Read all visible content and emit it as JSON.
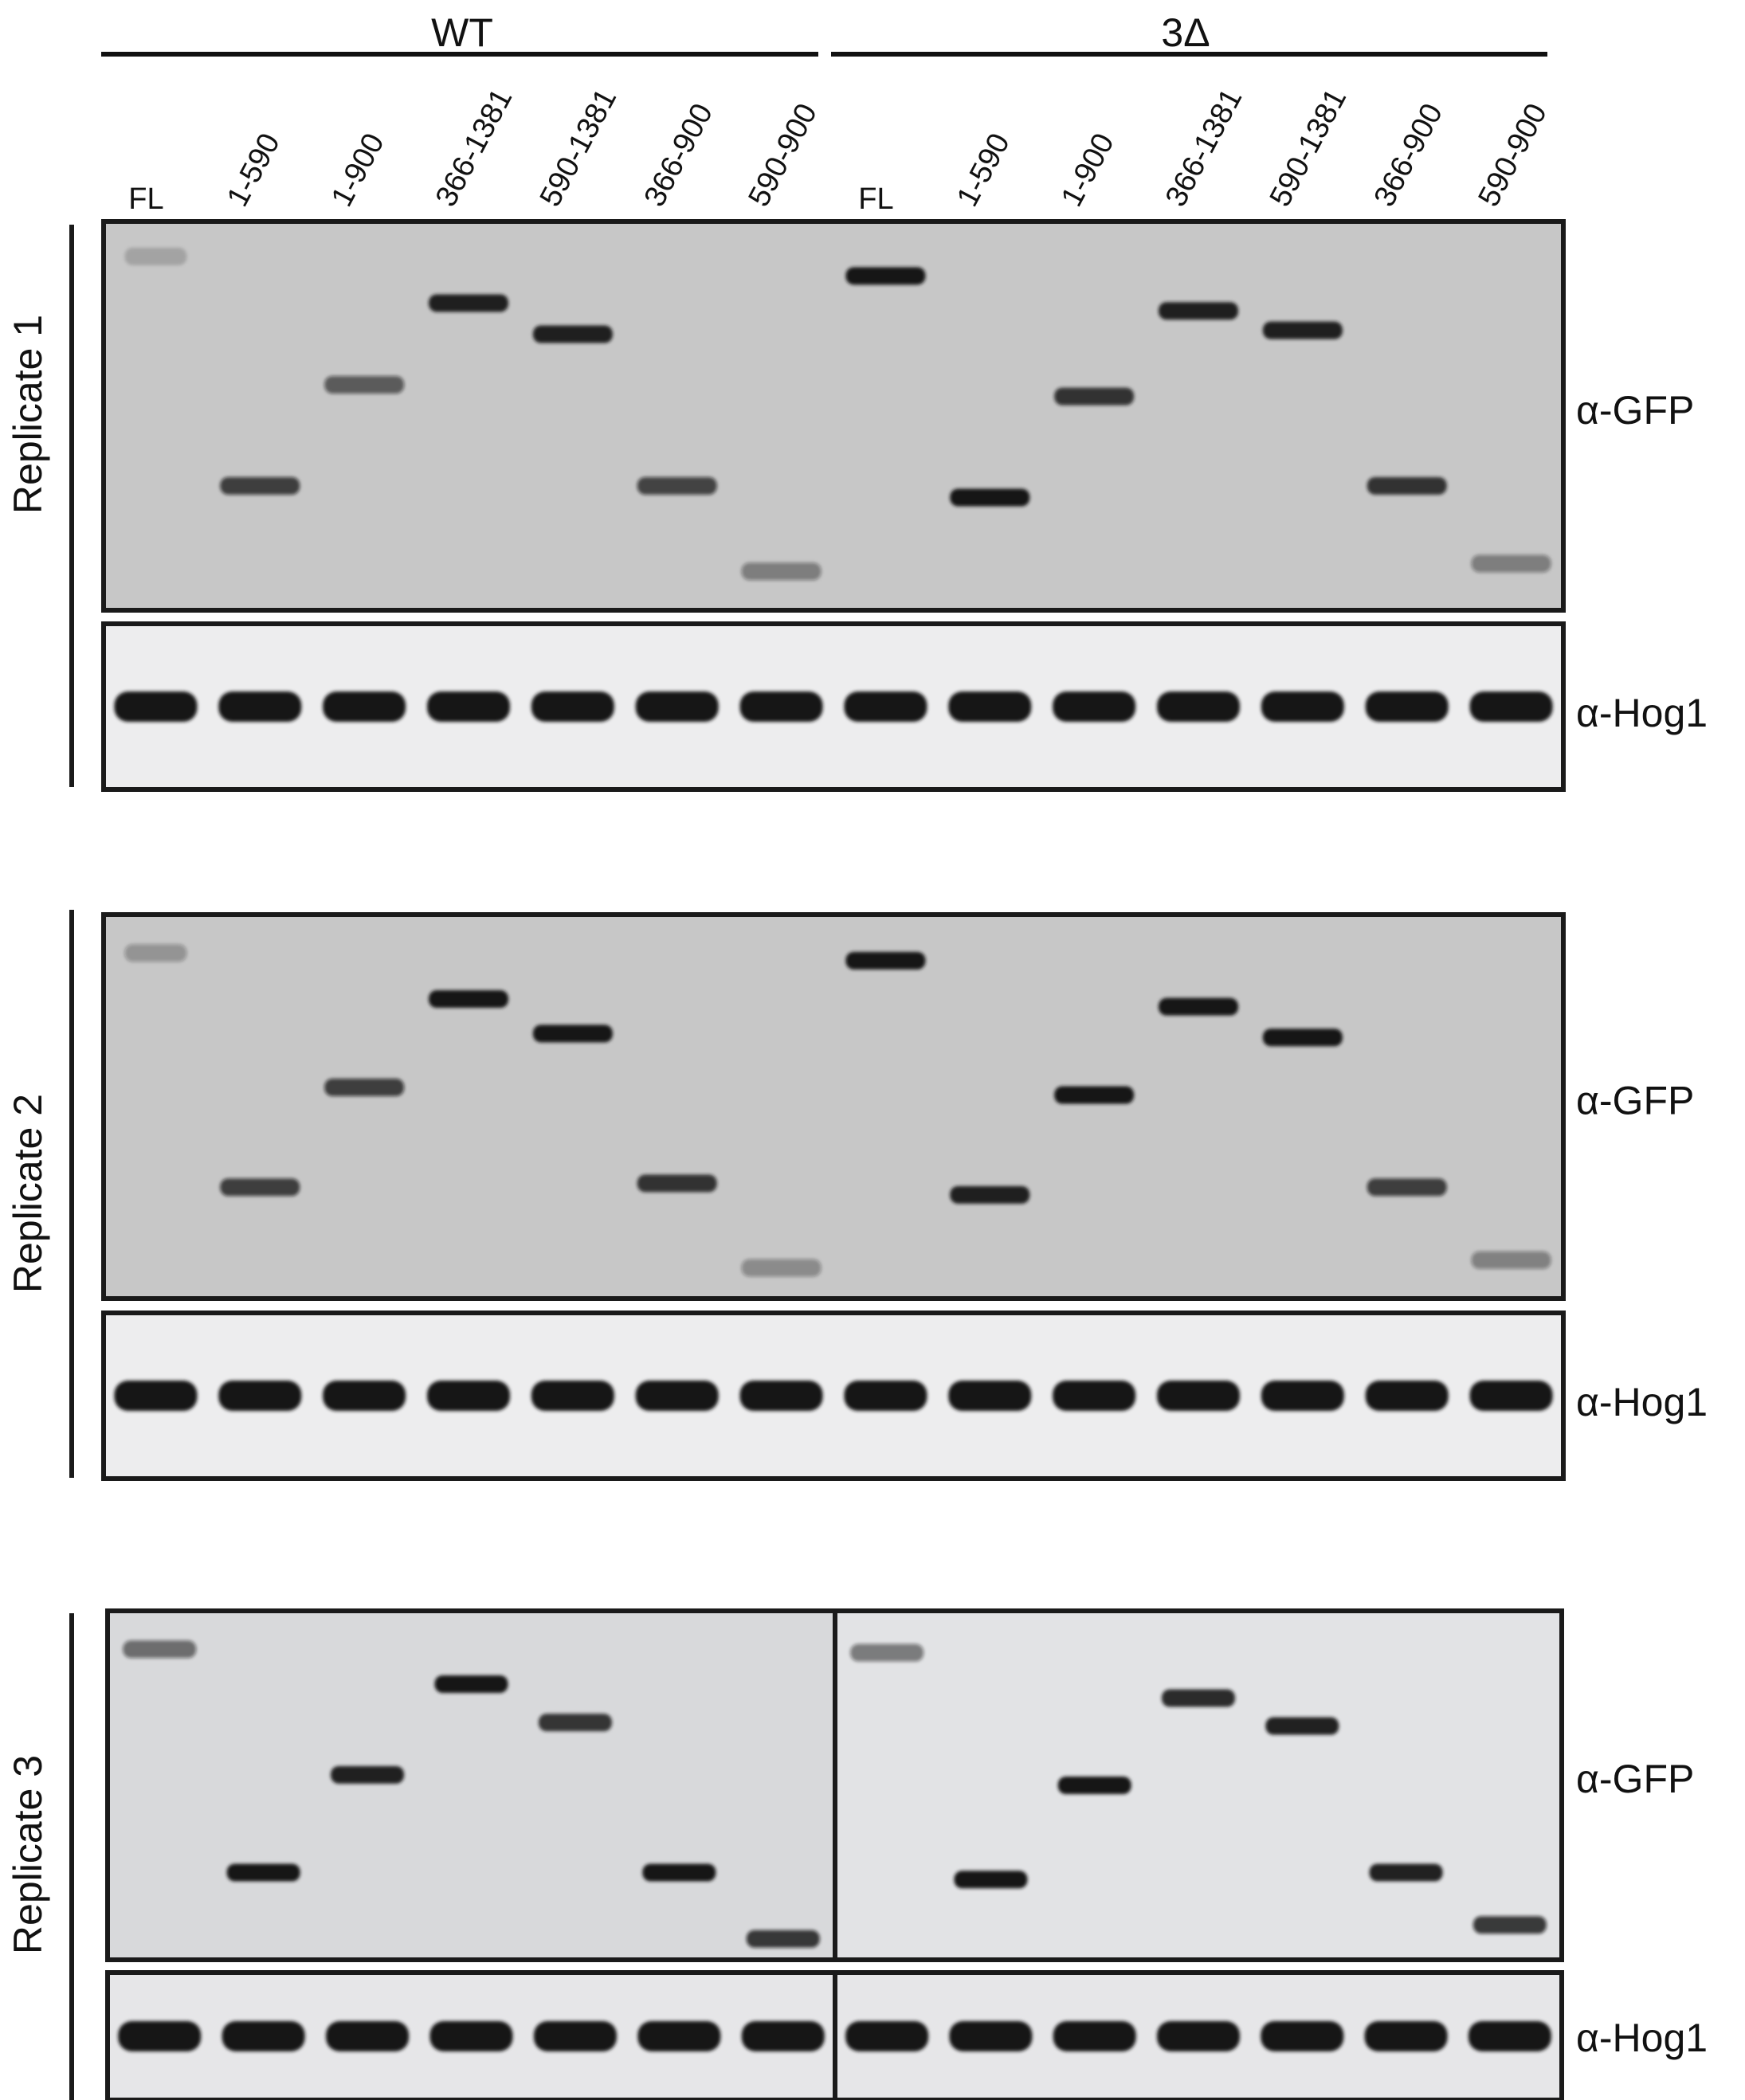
{
  "groups": [
    {
      "label": "WT"
    },
    {
      "label": "3Δ"
    }
  ],
  "lanes": [
    "FL",
    "1-590",
    "1-900",
    "366-1381",
    "590-1381",
    "366-900",
    "590-900"
  ],
  "antibodies": {
    "gfp": "α-GFP",
    "hog1": "α-Hog1"
  },
  "replicates": [
    {
      "label": "Replicate 1",
      "gfp_bands": {
        "wt": [
          {
            "lane": 1,
            "pos": 0.09,
            "int": 0.18
          },
          {
            "lane": 2,
            "pos": 0.68,
            "int": 0.75
          },
          {
            "lane": 3,
            "pos": 0.42,
            "int": 0.6
          },
          {
            "lane": 4,
            "pos": 0.21,
            "int": 0.95
          },
          {
            "lane": 5,
            "pos": 0.29,
            "int": 0.95
          },
          {
            "lane": 6,
            "pos": 0.68,
            "int": 0.72
          },
          {
            "lane": 7,
            "pos": 0.9,
            "int": 0.42
          }
        ],
        "mut": [
          {
            "lane": 1,
            "pos": 0.14,
            "int": 1.0
          },
          {
            "lane": 2,
            "pos": 0.71,
            "int": 1.0
          },
          {
            "lane": 3,
            "pos": 0.45,
            "int": 0.85
          },
          {
            "lane": 4,
            "pos": 0.23,
            "int": 0.95
          },
          {
            "lane": 5,
            "pos": 0.28,
            "int": 0.95
          },
          {
            "lane": 6,
            "pos": 0.68,
            "int": 0.85
          },
          {
            "lane": 7,
            "pos": 0.88,
            "int": 0.42
          }
        ]
      }
    },
    {
      "label": "Replicate 2",
      "gfp_bands": {
        "wt": [
          {
            "lane": 1,
            "pos": 0.1,
            "int": 0.3
          },
          {
            "lane": 2,
            "pos": 0.71,
            "int": 0.75
          },
          {
            "lane": 3,
            "pos": 0.45,
            "int": 0.75
          },
          {
            "lane": 4,
            "pos": 0.22,
            "int": 1.0
          },
          {
            "lane": 5,
            "pos": 0.31,
            "int": 1.0
          },
          {
            "lane": 6,
            "pos": 0.7,
            "int": 0.85
          },
          {
            "lane": 7,
            "pos": 0.92,
            "int": 0.35
          }
        ],
        "mut": [
          {
            "lane": 1,
            "pos": 0.12,
            "int": 1.0
          },
          {
            "lane": 2,
            "pos": 0.73,
            "int": 0.95
          },
          {
            "lane": 3,
            "pos": 0.47,
            "int": 1.0
          },
          {
            "lane": 4,
            "pos": 0.24,
            "int": 1.0
          },
          {
            "lane": 5,
            "pos": 0.32,
            "int": 1.0
          },
          {
            "lane": 6,
            "pos": 0.71,
            "int": 0.75
          },
          {
            "lane": 7,
            "pos": 0.9,
            "int": 0.4
          }
        ]
      }
    },
    {
      "label": "Replicate 3",
      "gfp_bands": {
        "wt": [
          {
            "lane": 1,
            "pos": 0.11,
            "int": 0.55
          },
          {
            "lane": 2,
            "pos": 0.75,
            "int": 1.0
          },
          {
            "lane": 3,
            "pos": 0.47,
            "int": 0.95
          },
          {
            "lane": 4,
            "pos": 0.21,
            "int": 1.0
          },
          {
            "lane": 5,
            "pos": 0.32,
            "int": 0.85
          },
          {
            "lane": 6,
            "pos": 0.75,
            "int": 1.0
          },
          {
            "lane": 7,
            "pos": 0.94,
            "int": 0.8
          }
        ],
        "mut": [
          {
            "lane": 1,
            "pos": 0.12,
            "int": 0.5
          },
          {
            "lane": 2,
            "pos": 0.77,
            "int": 1.0
          },
          {
            "lane": 3,
            "pos": 0.5,
            "int": 1.0
          },
          {
            "lane": 4,
            "pos": 0.25,
            "int": 0.9
          },
          {
            "lane": 5,
            "pos": 0.33,
            "int": 0.95
          },
          {
            "lane": 6,
            "pos": 0.75,
            "int": 0.95
          },
          {
            "lane": 7,
            "pos": 0.9,
            "int": 0.8
          }
        ]
      }
    }
  ],
  "colors": {
    "text": "#111111",
    "frame": "#1a1a1a",
    "band": "#141414",
    "blot_bg_dark": "#c7c7c7",
    "blot_bg_light": "#e2e3e5"
  }
}
